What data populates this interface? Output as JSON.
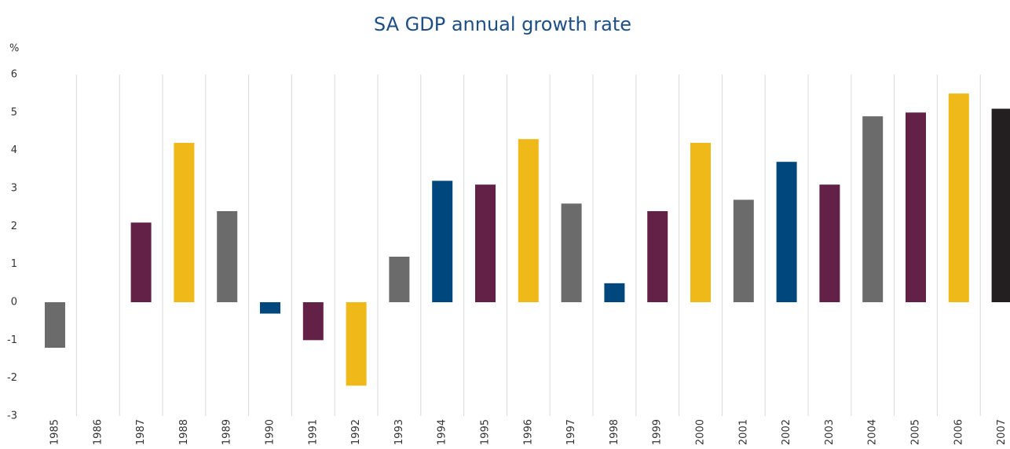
{
  "chart_data": {
    "type": "bar",
    "title": "SA GDP annual growth rate",
    "y_label": "%",
    "categories": [
      "1985",
      "1986",
      "1987",
      "1988",
      "1989",
      "1990",
      "1991",
      "1992",
      "1993",
      "1994",
      "1995",
      "1996",
      "1997",
      "1998",
      "1999",
      "2000",
      "2001",
      "2002",
      "2003",
      "2004",
      "2005",
      "2006",
      "2007"
    ],
    "values": [
      -1.2,
      null,
      2.1,
      4.2,
      2.4,
      -0.3,
      -1.0,
      -2.2,
      1.2,
      3.2,
      3.1,
      4.3,
      2.6,
      0.5,
      2.4,
      4.2,
      2.7,
      3.7,
      3.1,
      4.9,
      5.0,
      5.5,
      5.1
    ],
    "colors": [
      "#6b6b6b",
      null,
      "#642148",
      "#f0b91a",
      "#6b6b6b",
      "#00477d",
      "#642148",
      "#f0b91a",
      "#6b6b6b",
      "#00477d",
      "#642148",
      "#f0b91a",
      "#6b6b6b",
      "#00477d",
      "#642148",
      "#f0b91a",
      "#6b6b6b",
      "#00477d",
      "#642148",
      "#6b6b6b",
      "#642148",
      "#f0b91a",
      "#231f20"
    ],
    "ylim": [
      -3,
      6
    ],
    "yticks": [
      -3,
      -2,
      -1,
      0,
      1,
      2,
      3,
      4,
      5,
      6
    ],
    "grid": false
  }
}
